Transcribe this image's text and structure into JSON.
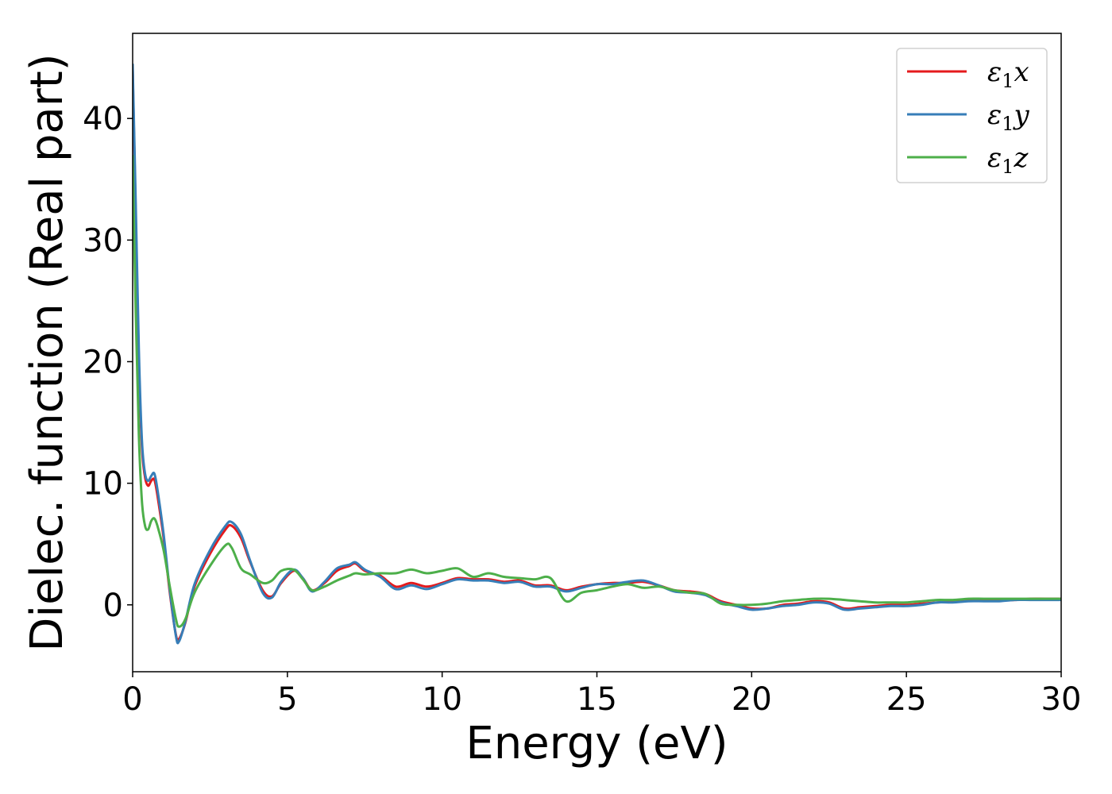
{
  "chart_data": {
    "type": "line",
    "title": "",
    "xlabel": "Energy (eV)",
    "ylabel": "Dielec. function (Real part)",
    "xlim": [
      0,
      30
    ],
    "ylim": [
      -5.5,
      47
    ],
    "xticks": [
      0,
      5,
      10,
      15,
      20,
      25,
      30
    ],
    "yticks": [
      0,
      10,
      20,
      30,
      40
    ],
    "grid": false,
    "legend_position": "top-right",
    "series": [
      {
        "name": "ε₁x",
        "label_base": "ε",
        "label_sub": "1",
        "label_suffix": "x",
        "color": "#e41a1c",
        "x": [
          0,
          0.1,
          0.2,
          0.3,
          0.4,
          0.5,
          0.6,
          0.7,
          0.8,
          1.0,
          1.2,
          1.4,
          1.5,
          1.7,
          2.0,
          2.5,
          3.0,
          3.2,
          3.5,
          3.8,
          4.2,
          4.5,
          4.8,
          5.2,
          5.5,
          5.8,
          6.2,
          6.6,
          7.0,
          7.2,
          7.5,
          8.0,
          8.5,
          9.0,
          9.5,
          10.0,
          10.5,
          11.0,
          11.5,
          12.0,
          12.5,
          13.0,
          13.5,
          14.0,
          14.5,
          15.0,
          15.5,
          16.0,
          16.5,
          17.0,
          17.5,
          18.0,
          18.5,
          19.0,
          19.5,
          20.0,
          20.5,
          21.0,
          21.5,
          22.0,
          22.5,
          23.0,
          23.5,
          24.0,
          24.5,
          25.0,
          25.5,
          26.0,
          26.5,
          27.0,
          27.5,
          28.0,
          28.5,
          29.0,
          29.5,
          30.0
        ],
        "y": [
          44,
          32,
          20,
          13,
          10.5,
          9.8,
          10.2,
          10.3,
          9.0,
          5.5,
          1.0,
          -2.5,
          -2.8,
          -1.5,
          1.5,
          4.2,
          6.2,
          6.5,
          5.5,
          3.5,
          1.2,
          0.7,
          1.8,
          2.8,
          2.2,
          1.2,
          1.8,
          2.8,
          3.2,
          3.4,
          2.8,
          2.4,
          1.5,
          1.8,
          1.5,
          1.8,
          2.2,
          2.1,
          2.1,
          1.9,
          2.0,
          1.6,
          1.6,
          1.2,
          1.5,
          1.7,
          1.8,
          1.8,
          1.9,
          1.6,
          1.2,
          1.1,
          0.9,
          0.3,
          0.0,
          -0.3,
          -0.3,
          0.0,
          0.1,
          0.3,
          0.2,
          -0.3,
          -0.2,
          -0.1,
          0.0,
          0.0,
          0.1,
          0.2,
          0.3,
          0.4,
          0.4,
          0.4,
          0.4,
          0.5,
          0.5,
          0.5
        ]
      },
      {
        "name": "ε₁y",
        "label_base": "ε",
        "label_sub": "1",
        "label_suffix": "y",
        "color": "#377eb8",
        "x": [
          0,
          0.1,
          0.2,
          0.3,
          0.4,
          0.5,
          0.6,
          0.7,
          0.8,
          1.0,
          1.2,
          1.4,
          1.5,
          1.7,
          2.0,
          2.5,
          3.0,
          3.2,
          3.5,
          3.8,
          4.2,
          4.5,
          4.8,
          5.2,
          5.5,
          5.8,
          6.2,
          6.6,
          7.0,
          7.2,
          7.5,
          8.0,
          8.5,
          9.0,
          9.5,
          10.0,
          10.5,
          11.0,
          11.5,
          12.0,
          12.5,
          13.0,
          13.5,
          14.0,
          14.5,
          15.0,
          15.5,
          16.0,
          16.5,
          17.0,
          17.5,
          18.0,
          18.5,
          19.0,
          19.5,
          20.0,
          20.5,
          21.0,
          21.5,
          22.0,
          22.5,
          23.0,
          23.5,
          24.0,
          24.5,
          25.0,
          25.5,
          26.0,
          26.5,
          27.0,
          27.5,
          28.0,
          28.5,
          29.0,
          29.5,
          30.0
        ],
        "y": [
          44.5,
          33,
          21,
          13.5,
          10.8,
          10.2,
          10.6,
          10.8,
          9.5,
          5.8,
          1.2,
          -2.6,
          -3.0,
          -1.4,
          1.7,
          4.5,
          6.5,
          6.8,
          5.8,
          3.6,
          1.0,
          0.6,
          1.9,
          2.9,
          2.2,
          1.1,
          1.9,
          3.0,
          3.3,
          3.5,
          2.9,
          2.3,
          1.3,
          1.6,
          1.3,
          1.7,
          2.1,
          2.0,
          2.0,
          1.8,
          1.9,
          1.5,
          1.5,
          1.1,
          1.4,
          1.7,
          1.7,
          1.9,
          2.0,
          1.6,
          1.1,
          1.0,
          0.8,
          0.2,
          -0.1,
          -0.4,
          -0.3,
          -0.1,
          0.0,
          0.2,
          0.1,
          -0.4,
          -0.3,
          -0.2,
          -0.1,
          -0.1,
          0.0,
          0.2,
          0.2,
          0.3,
          0.3,
          0.3,
          0.4,
          0.4,
          0.4,
          0.4
        ]
      },
      {
        "name": "ε₁z",
        "label_base": "ε",
        "label_sub": "1",
        "label_suffix": "z",
        "color": "#4daf4a",
        "x": [
          0,
          0.1,
          0.2,
          0.3,
          0.4,
          0.5,
          0.6,
          0.7,
          0.8,
          1.0,
          1.2,
          1.4,
          1.5,
          1.7,
          2.0,
          2.5,
          3.0,
          3.2,
          3.5,
          3.8,
          4.2,
          4.5,
          4.8,
          5.2,
          5.5,
          5.8,
          6.2,
          6.6,
          7.0,
          7.2,
          7.5,
          8.0,
          8.5,
          9.0,
          9.5,
          10.0,
          10.5,
          11.0,
          11.5,
          12.0,
          12.5,
          13.0,
          13.5,
          14.0,
          14.5,
          15.0,
          15.5,
          16.0,
          16.5,
          17.0,
          17.5,
          18.0,
          18.5,
          19.0,
          19.5,
          20.0,
          20.5,
          21.0,
          21.5,
          22.0,
          22.5,
          23.0,
          23.5,
          24.0,
          24.5,
          25.0,
          25.5,
          26.0,
          26.5,
          27.0,
          27.5,
          28.0,
          28.5,
          29.0,
          29.5,
          30.0
        ],
        "y": [
          37,
          24,
          14,
          8.5,
          6.5,
          6.2,
          6.9,
          7.1,
          6.5,
          4.5,
          1.5,
          -1.2,
          -1.8,
          -1.2,
          1.0,
          3.2,
          4.9,
          4.7,
          3.0,
          2.5,
          1.8,
          2.0,
          2.8,
          2.9,
          2.1,
          1.2,
          1.5,
          2.0,
          2.4,
          2.6,
          2.5,
          2.6,
          2.6,
          2.9,
          2.6,
          2.8,
          3.0,
          2.3,
          2.6,
          2.3,
          2.2,
          2.1,
          2.2,
          0.3,
          1.0,
          1.2,
          1.5,
          1.7,
          1.4,
          1.5,
          1.2,
          1.0,
          0.9,
          0.1,
          0.0,
          0.0,
          0.1,
          0.3,
          0.4,
          0.5,
          0.5,
          0.4,
          0.3,
          0.2,
          0.2,
          0.2,
          0.3,
          0.4,
          0.4,
          0.5,
          0.5,
          0.5,
          0.5,
          0.5,
          0.5,
          0.5
        ]
      }
    ]
  }
}
